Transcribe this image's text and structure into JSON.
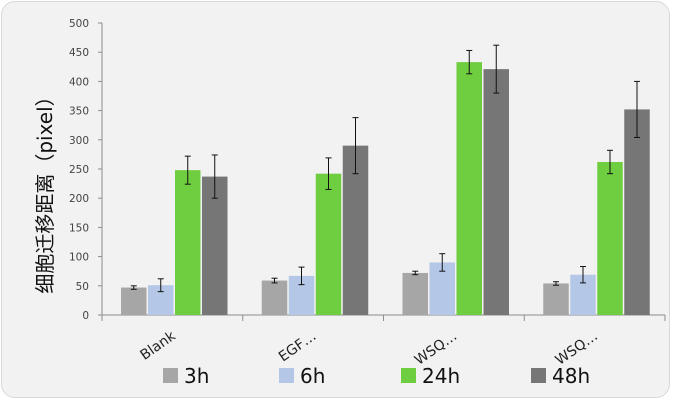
{
  "chart_data": {
    "type": "bar",
    "title": "",
    "ylabel": "细胞迁移距离（pixel）",
    "xlabel": "",
    "ylim": [
      0,
      500
    ],
    "yticks": [
      0,
      50,
      100,
      150,
      200,
      250,
      300,
      350,
      400,
      450,
      500
    ],
    "categories": [
      "Blank",
      "EGF…",
      "WSQ…",
      "WSQ…"
    ],
    "series": [
      {
        "name": "3h",
        "color": "#a6a6a6",
        "values": [
          47,
          59,
          72,
          54
        ],
        "errors": [
          3,
          4,
          3,
          3
        ]
      },
      {
        "name": "6h",
        "color": "#b4c7e7",
        "values": [
          51,
          67,
          90,
          69
        ],
        "errors": [
          11,
          15,
          15,
          14
        ]
      },
      {
        "name": "24h",
        "color": "#6fce3f",
        "values": [
          248,
          242,
          433,
          262
        ],
        "errors": [
          24,
          27,
          20,
          20
        ]
      },
      {
        "name": "48h",
        "color": "#767676",
        "values": [
          237,
          290,
          421,
          352
        ],
        "errors": [
          37,
          48,
          41,
          48
        ]
      }
    ],
    "grid": false,
    "legend": "bottom"
  }
}
